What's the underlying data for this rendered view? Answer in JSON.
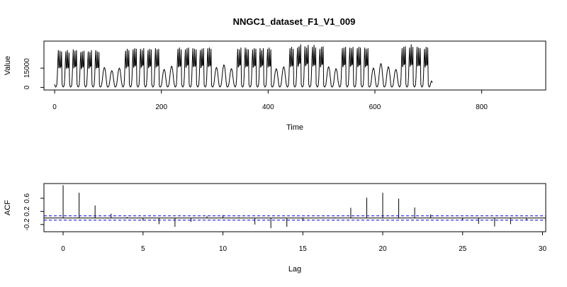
{
  "chart_data": [
    {
      "type": "line",
      "title": "NNGC1_dataset_F1_V1_009",
      "xlabel": "Time",
      "ylabel": "Value",
      "xlim": [
        -20,
        920
      ],
      "ylim": [
        -2000,
        36000
      ],
      "x_ticks": [
        0,
        200,
        400,
        600,
        800
      ],
      "y_ticks": [
        0,
        15000
      ],
      "grid": false,
      "color": "#000000",
      "series_length": 900,
      "weeks": [
        {
          "type": "w",
          "peaks": [
            29000,
            28500,
            28000,
            27500,
            29500
          ]
        },
        {
          "type": "w",
          "peaks": [
            28000,
            29000,
            27000,
            28500,
            28000
          ]
        },
        {
          "type": "w",
          "peaks": [
            29500,
            28500,
            29000,
            27000,
            29000
          ]
        },
        {
          "type": "w",
          "peaks": [
            27500,
            28000,
            28500,
            29500,
            27500
          ]
        },
        {
          "type": "w",
          "peaks": [
            28000,
            27500,
            29000,
            28000,
            28500
          ]
        },
        {
          "type": "w",
          "peaks": [
            29000,
            28000,
            27500,
            28500,
            29000
          ]
        },
        {
          "type": "h",
          "peak": 15500
        },
        {
          "type": "h",
          "peak": 13000
        },
        {
          "type": "h",
          "peak": 15000
        },
        {
          "type": "w",
          "peaks": [
            28500,
            30000,
            29000,
            29500,
            30500
          ]
        },
        {
          "type": "w",
          "peaks": [
            29500,
            30500,
            30000,
            29000,
            30500
          ]
        },
        {
          "type": "w",
          "peaks": [
            30000,
            29000,
            30500,
            30000,
            29500
          ]
        },
        {
          "type": "w",
          "peaks": [
            29000,
            30000,
            29500,
            30500,
            30000
          ]
        },
        {
          "type": "w",
          "peaks": [
            30500,
            29500,
            30000,
            29000,
            30000
          ]
        },
        {
          "type": "h",
          "peak": 14000
        },
        {
          "type": "h",
          "peak": 16500
        },
        {
          "type": "w",
          "peaks": [
            30000,
            31000,
            29500,
            30500,
            30000
          ]
        },
        {
          "type": "w",
          "peaks": [
            29500,
            30500,
            31000,
            30000,
            29500
          ]
        },
        {
          "type": "w",
          "peaks": [
            30500,
            30000,
            29500,
            31000,
            30500
          ]
        },
        {
          "type": "w",
          "peaks": [
            29000,
            30000,
            30500,
            29500,
            31000
          ]
        },
        {
          "type": "w",
          "peaks": [
            30500,
            31000,
            30000,
            29500,
            30000
          ]
        },
        {
          "type": "h",
          "peak": 15500
        },
        {
          "type": "h",
          "peak": 17500
        },
        {
          "type": "h",
          "peak": 14500
        },
        {
          "type": "w",
          "peaks": [
            30000,
            29500,
            31000,
            30500,
            30000
          ]
        },
        {
          "type": "w",
          "peaks": [
            31000,
            30000,
            29500,
            30500,
            31000
          ]
        },
        {
          "type": "w",
          "peaks": [
            29500,
            30500,
            30000,
            31000,
            29500
          ]
        },
        {
          "type": "w",
          "peaks": [
            30500,
            29000,
            30500,
            30000,
            30500
          ]
        },
        {
          "type": "w",
          "peaks": [
            30000,
            31000,
            29500,
            30500,
            30000
          ]
        },
        {
          "type": "h",
          "peak": 14500
        },
        {
          "type": "h",
          "peak": 16000
        },
        {
          "type": "w",
          "peaks": [
            30500,
            31500,
            30000,
            31000,
            29500
          ]
        },
        {
          "type": "w",
          "peaks": [
            31000,
            32000,
            33500,
            31000,
            30000
          ]
        },
        {
          "type": "w",
          "peaks": [
            32000,
            31000,
            33000,
            34000,
            31500
          ]
        },
        {
          "type": "w",
          "peaks": [
            31500,
            33000,
            31000,
            32500,
            31000
          ]
        },
        {
          "type": "w",
          "peaks": [
            30000,
            31500,
            32000,
            30500,
            31000
          ]
        },
        {
          "type": "h",
          "peak": 16000
        },
        {
          "type": "h",
          "peak": 14500
        },
        {
          "type": "w",
          "peaks": [
            30500,
            31000,
            31500,
            30000,
            31000
          ]
        },
        {
          "type": "w",
          "peaks": [
            31000,
            30500,
            31500,
            32000,
            31000
          ]
        },
        {
          "type": "w",
          "peaks": [
            30500,
            31500,
            31000,
            30000,
            31500
          ]
        },
        {
          "type": "w",
          "peaks": [
            31000,
            30000,
            30500,
            31500,
            30500
          ]
        },
        {
          "type": "h",
          "peak": 15000
        },
        {
          "type": "h",
          "peak": 18500
        },
        {
          "type": "h",
          "peak": 16000
        },
        {
          "type": "h",
          "peak": 14000
        },
        {
          "type": "w",
          "peaks": [
            30500,
            31500,
            32000,
            31000,
            30500
          ]
        },
        {
          "type": "w",
          "peaks": [
            31000,
            33500,
            31500,
            34000,
            32000
          ]
        },
        {
          "type": "w",
          "peaks": [
            31500,
            31000,
            30500,
            31500,
            31000
          ]
        },
        {
          "type": "w",
          "peaks": [
            30000,
            31500,
            31000,
            30500,
            31000
          ]
        },
        {
          "type": "p",
          "peak": 5000
        }
      ]
    },
    {
      "type": "bar",
      "xlabel": "Lag",
      "ylabel": "ACF",
      "xlim": [
        -1.2,
        30.2
      ],
      "ylim": [
        -0.42,
        1.05
      ],
      "x_ticks": [
        0,
        5,
        10,
        15,
        20,
        25,
        30
      ],
      "y_ticks": [
        -0.2,
        0.2,
        0.6
      ],
      "conf_limit": 0.065,
      "conf_color": "#0000ff",
      "lags": [
        0,
        1,
        2,
        3,
        4,
        5,
        6,
        7,
        8,
        9,
        10,
        11,
        12,
        13,
        14,
        15,
        16,
        17,
        18,
        19,
        20,
        21,
        22,
        23,
        24,
        25,
        26,
        27,
        28,
        29
      ],
      "values": [
        1.0,
        0.77,
        0.38,
        0.13,
        0.03,
        -0.08,
        -0.19,
        -0.27,
        -0.12,
        0.05,
        0.09,
        0.02,
        -0.2,
        -0.31,
        -0.27,
        -0.09,
        0.0,
        0.02,
        0.31,
        0.62,
        0.77,
        0.59,
        0.32,
        0.11,
        0.0,
        -0.07,
        -0.18,
        -0.26,
        -0.19,
        -0.07
      ]
    }
  ]
}
